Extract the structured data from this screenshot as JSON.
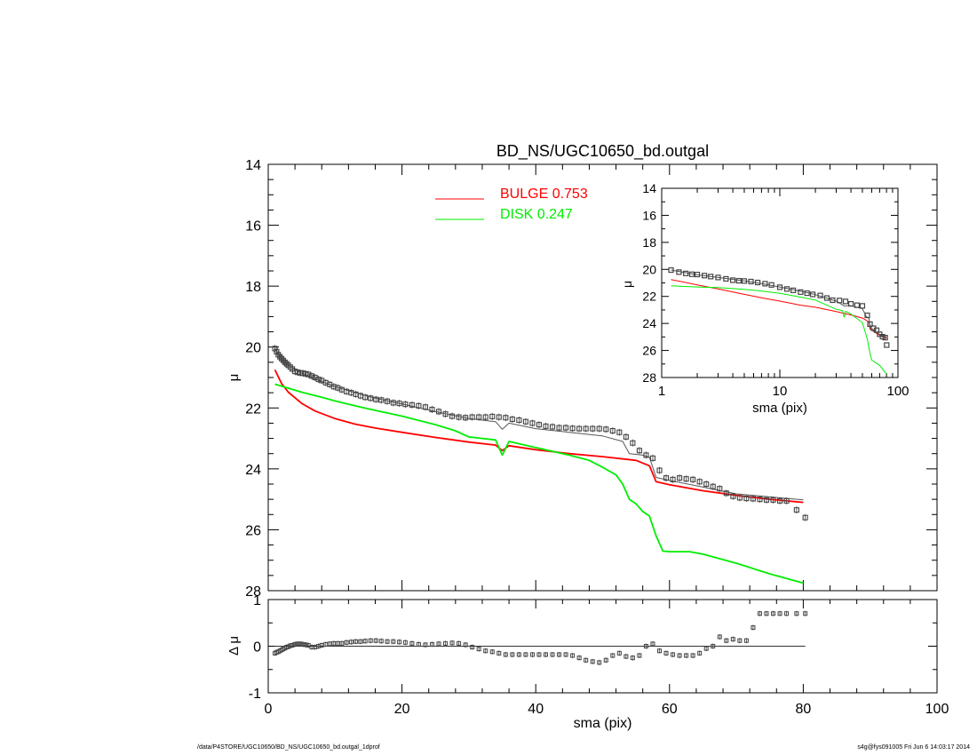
{
  "footer": {
    "left": "/data/P4STORE/UGC10650/BD_NS/UGC10650_bd.outgal_1dprof",
    "right": "s4g@fys091005  Fri Jun  6 14:03:17 2014"
  },
  "colors": {
    "bulge": "#ff0000",
    "disk": "#00ee00",
    "total": "#555555",
    "data": "#444444"
  },
  "chart_data": [
    {
      "id": "main",
      "type": "line",
      "title": "BD_NS/UGC10650_bd.outgal",
      "xlabel": "",
      "ylabel": "μ",
      "xlim": [
        0,
        100
      ],
      "ylim": [
        28,
        14
      ],
      "yticks": [
        "14",
        "16",
        "18",
        "20",
        "22",
        "24",
        "26",
        "28"
      ],
      "legend": {
        "placement": "top-center",
        "entries": [
          {
            "label": "BULGE  0.753",
            "series": "BULGE"
          },
          {
            "label": "DISK  0.247",
            "series": "DISK"
          }
        ]
      },
      "series": [
        {
          "name": "BULGE",
          "color": "#ff0000",
          "x": [
            1,
            2,
            3,
            5,
            7,
            10,
            13,
            16,
            20,
            25,
            30,
            34,
            35,
            36,
            40,
            45,
            50,
            55,
            57,
            58,
            60,
            65,
            70,
            75,
            80
          ],
          "y": [
            20.75,
            21.2,
            21.48,
            21.85,
            22.1,
            22.35,
            22.53,
            22.66,
            22.8,
            22.97,
            23.12,
            23.22,
            23.4,
            23.24,
            23.37,
            23.5,
            23.6,
            23.72,
            23.9,
            24.42,
            24.52,
            24.72,
            24.87,
            25.0,
            25.1
          ]
        },
        {
          "name": "DISK",
          "color": "#00ee00",
          "x": [
            1,
            3,
            5,
            8,
            10,
            13,
            16,
            20,
            25,
            28,
            30,
            34,
            35,
            36,
            40,
            45,
            48,
            50,
            52,
            53,
            54,
            55,
            56,
            57,
            58,
            59,
            60,
            63,
            65,
            70,
            75,
            80
          ],
          "y": [
            21.22,
            21.35,
            21.48,
            21.65,
            21.77,
            21.93,
            22.08,
            22.27,
            22.55,
            22.75,
            22.95,
            23.05,
            23.55,
            23.1,
            23.3,
            23.55,
            23.72,
            23.95,
            24.2,
            24.5,
            25.0,
            25.15,
            25.4,
            25.55,
            26.2,
            26.7,
            26.72,
            26.72,
            26.8,
            27.1,
            27.45,
            27.75
          ]
        },
        {
          "name": "total",
          "color": "#555555",
          "x": [
            1,
            2,
            3,
            5,
            7,
            10,
            13,
            16,
            20,
            25,
            30,
            34,
            35,
            36,
            40,
            45,
            50,
            53,
            54,
            56,
            57,
            58,
            60,
            65,
            70,
            75,
            80
          ],
          "y": [
            20.05,
            20.4,
            20.6,
            20.85,
            21.05,
            21.3,
            21.5,
            21.68,
            21.87,
            22.12,
            22.35,
            22.45,
            22.7,
            22.5,
            22.68,
            22.8,
            22.92,
            23.1,
            23.5,
            23.55,
            23.62,
            24.28,
            24.38,
            24.6,
            24.82,
            24.92,
            25.02
          ]
        },
        {
          "name": "data",
          "color": "#444444",
          "marker": "square-with-errorbar",
          "x": [
            1.0,
            1.25,
            1.5,
            1.75,
            2.0,
            2.25,
            2.5,
            2.75,
            3.0,
            3.3,
            3.6,
            4.0,
            4.4,
            4.8,
            5.2,
            5.6,
            6.0,
            6.5,
            7.0,
            7.5,
            8.0,
            8.6,
            9.2,
            9.8,
            10.4,
            11.0,
            11.7,
            12.4,
            13.1,
            13.8,
            14.5,
            15.3,
            16.1,
            16.9,
            17.8,
            18.7,
            19.6,
            20.5,
            21.5,
            22.5,
            23.5,
            24.5,
            25.5,
            26.5,
            27.5,
            28.5,
            29.5,
            30.5,
            31.5,
            32.5,
            33.5,
            34.5,
            35.5,
            36.5,
            37.5,
            38.5,
            39.5,
            40.5,
            41.5,
            42.5,
            43.5,
            44.5,
            45.5,
            46.5,
            47.5,
            48.5,
            49.5,
            50.5,
            51.5,
            52.5,
            53.5,
            54.5,
            55.5,
            56.5,
            57.5,
            58.5,
            59.5,
            60.5,
            61.5,
            62.5,
            63.5,
            64.5,
            65.5,
            66.5,
            67.5,
            68.5,
            69.5,
            70.5,
            71.5,
            72.5,
            73.5,
            74.5,
            75.5,
            76.5,
            77.5,
            79.0,
            80.3
          ],
          "y": [
            20.05,
            20.15,
            20.25,
            20.32,
            20.38,
            20.44,
            20.5,
            20.55,
            20.6,
            20.66,
            20.72,
            20.8,
            20.83,
            20.85,
            20.86,
            20.88,
            20.9,
            20.95,
            21.0,
            21.06,
            21.1,
            21.17,
            21.23,
            21.3,
            21.34,
            21.4,
            21.46,
            21.5,
            21.55,
            21.6,
            21.65,
            21.68,
            21.72,
            21.74,
            21.78,
            21.83,
            21.85,
            21.88,
            21.9,
            21.93,
            21.97,
            22.05,
            22.12,
            22.2,
            22.27,
            22.3,
            22.32,
            22.3,
            22.3,
            22.3,
            22.28,
            22.3,
            22.32,
            22.37,
            22.4,
            22.45,
            22.5,
            22.55,
            22.6,
            22.62,
            22.65,
            22.65,
            22.67,
            22.68,
            22.68,
            22.68,
            22.68,
            22.7,
            22.75,
            22.8,
            22.95,
            23.15,
            23.4,
            23.55,
            23.65,
            24.05,
            24.3,
            24.35,
            24.3,
            24.33,
            24.35,
            24.42,
            24.5,
            24.58,
            24.65,
            24.8,
            24.9,
            24.95,
            24.97,
            24.98,
            25.0,
            25.02,
            25.02,
            25.05,
            25.05,
            25.35,
            25.6
          ]
        }
      ]
    },
    {
      "id": "inset",
      "type": "line",
      "title": "",
      "xlabel": "sma (pix)",
      "ylabel": "μ",
      "xscale": "log",
      "xlim": [
        1,
        100
      ],
      "ylim": [
        28,
        14
      ],
      "xticks": [
        "1",
        "10",
        "100"
      ],
      "yticks": [
        "14",
        "16",
        "18",
        "20",
        "22",
        "24",
        "26",
        "28"
      ],
      "series": [
        {
          "name": "BULGE",
          "color": "#ff0000",
          "x": [
            1.2,
            2,
            3,
            5,
            7,
            10,
            15,
            20,
            30,
            40,
            50,
            57,
            58,
            70,
            80
          ],
          "y": [
            20.75,
            21.15,
            21.45,
            21.85,
            22.1,
            22.35,
            22.65,
            22.8,
            23.12,
            23.37,
            23.6,
            23.9,
            24.42,
            24.87,
            25.1
          ]
        },
        {
          "name": "DISK",
          "color": "#00ee00",
          "x": [
            1.2,
            2,
            3,
            5,
            7,
            10,
            15,
            20,
            30,
            34,
            35,
            36,
            40,
            50,
            55,
            58,
            60,
            70,
            80
          ],
          "y": [
            21.22,
            21.3,
            21.35,
            21.48,
            21.6,
            21.77,
            22.05,
            22.27,
            22.95,
            23.05,
            23.55,
            23.1,
            23.3,
            23.95,
            25.15,
            26.2,
            26.72,
            27.1,
            27.75
          ]
        },
        {
          "name": "total",
          "color": "#555555",
          "x": [
            1.2,
            2,
            3,
            5,
            7,
            10,
            15,
            20,
            30,
            35,
            40,
            50,
            54,
            57,
            58,
            60,
            70,
            80
          ],
          "y": [
            20.05,
            20.4,
            20.6,
            20.85,
            21.05,
            21.3,
            21.62,
            21.87,
            22.35,
            22.7,
            22.68,
            22.92,
            23.5,
            23.62,
            24.28,
            24.38,
            24.82,
            25.02
          ]
        },
        {
          "name": "data",
          "color": "#444444",
          "marker": "square",
          "x": [
            1.2,
            1.4,
            1.6,
            1.8,
            2.0,
            2.3,
            2.6,
            3.0,
            3.5,
            4.0,
            4.5,
            5.0,
            5.7,
            6.5,
            7.5,
            8.5,
            10,
            11.5,
            13,
            15,
            17,
            19,
            22,
            25,
            28,
            32,
            36,
            40,
            45,
            50,
            55,
            58,
            62,
            66,
            70,
            74,
            78,
            80.3
          ],
          "y": [
            20.05,
            20.2,
            20.3,
            20.36,
            20.38,
            20.46,
            20.53,
            20.6,
            20.7,
            20.8,
            20.84,
            20.86,
            20.9,
            20.97,
            21.06,
            21.15,
            21.32,
            21.45,
            21.55,
            21.68,
            21.76,
            21.85,
            21.93,
            22.12,
            22.28,
            22.3,
            22.37,
            22.55,
            22.65,
            22.7,
            23.4,
            24.05,
            24.35,
            24.5,
            24.8,
            24.98,
            25.05,
            25.6
          ]
        }
      ]
    },
    {
      "id": "residual",
      "type": "scatter",
      "title": "",
      "xlabel": "sma (pix)",
      "ylabel": "Δ μ",
      "xlim": [
        0,
        100
      ],
      "ylim": [
        -1,
        1
      ],
      "xticks": [
        "0",
        "20",
        "40",
        "60",
        "80",
        "100"
      ],
      "yticks": [
        "1",
        "0",
        "-1"
      ],
      "reference_line": 0,
      "series": [
        {
          "name": "residual",
          "color": "#444444",
          "marker": "square-with-errorbar",
          "x": [
            1.0,
            1.25,
            1.5,
            1.75,
            2.0,
            2.25,
            2.5,
            2.75,
            3.0,
            3.3,
            3.6,
            4.0,
            4.4,
            4.8,
            5.2,
            5.6,
            6.0,
            6.5,
            7.0,
            7.5,
            8.0,
            8.6,
            9.2,
            9.8,
            10.4,
            11.0,
            11.7,
            12.4,
            13.1,
            13.8,
            14.5,
            15.3,
            16.1,
            16.9,
            17.8,
            18.7,
            19.6,
            20.5,
            21.5,
            22.5,
            23.5,
            24.5,
            25.5,
            26.5,
            27.5,
            28.5,
            29.5,
            30.5,
            31.5,
            32.5,
            33.5,
            34.5,
            35.5,
            36.5,
            37.5,
            38.5,
            39.5,
            40.5,
            41.5,
            42.5,
            43.5,
            44.5,
            45.5,
            46.5,
            47.5,
            48.5,
            49.5,
            50.5,
            51.5,
            52.5,
            53.5,
            54.5,
            55.5,
            56.5,
            57.5,
            58.5,
            59.5,
            60.5,
            61.5,
            62.5,
            63.5,
            64.5,
            65.5,
            66.5,
            67.5,
            68.5,
            69.5,
            70.5,
            71.5,
            72.5,
            73.5,
            74.5,
            75.5,
            76.5,
            77.5,
            79.0,
            80.3
          ],
          "y": [
            -0.15,
            -0.13,
            -0.12,
            -0.1,
            -0.08,
            -0.06,
            -0.04,
            -0.02,
            -0.01,
            0.01,
            0.02,
            0.04,
            0.05,
            0.05,
            0.04,
            0.03,
            0.02,
            -0.02,
            -0.02,
            0.0,
            0.02,
            0.04,
            0.05,
            0.06,
            0.06,
            0.06,
            0.08,
            0.09,
            0.1,
            0.1,
            0.11,
            0.12,
            0.12,
            0.11,
            0.1,
            0.1,
            0.09,
            0.08,
            0.06,
            0.04,
            0.03,
            0.04,
            0.05,
            0.06,
            0.07,
            0.06,
            0.03,
            -0.02,
            -0.06,
            -0.1,
            -0.12,
            -0.15,
            -0.18,
            -0.18,
            -0.18,
            -0.18,
            -0.18,
            -0.18,
            -0.18,
            -0.18,
            -0.18,
            -0.18,
            -0.2,
            -0.25,
            -0.3,
            -0.33,
            -0.35,
            -0.3,
            -0.2,
            -0.15,
            -0.22,
            -0.25,
            -0.2,
            0.0,
            0.05,
            -0.1,
            -0.15,
            -0.18,
            -0.2,
            -0.2,
            -0.2,
            -0.15,
            -0.05,
            0.0,
            0.2,
            0.12,
            0.15,
            0.12,
            0.12,
            0.4,
            0.7,
            0.7,
            0.7,
            0.7,
            0.7,
            0.7,
            0.7
          ]
        }
      ]
    }
  ]
}
